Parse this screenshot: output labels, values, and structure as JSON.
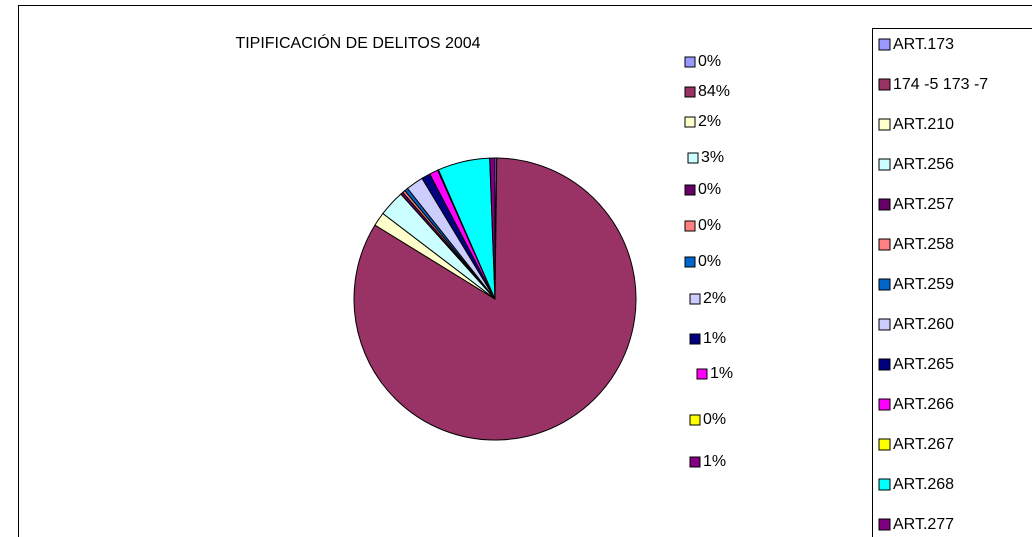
{
  "chart_data": {
    "type": "pie",
    "title": "TIPIFICACIÓN DE DELITOS 2004",
    "categories": [
      "ART.173",
      "174 -5 173 -7",
      "ART.210",
      "ART.256",
      "ART.257",
      "ART.258",
      "ART.259",
      "ART.260",
      "ART.265",
      "ART.266",
      "ART.267",
      "ART.268",
      "ART.277"
    ],
    "values": [
      0.2,
      84,
      1.6,
      3,
      0.3,
      0.3,
      0.4,
      2,
      1,
      1,
      0.1,
      6,
      0.6
    ],
    "value_labels": [
      "0%",
      "84%",
      "2%",
      "3%",
      "0%",
      "0%",
      "0%",
      "2%",
      "1%",
      "1%",
      "0%",
      null,
      "1%"
    ],
    "colors": [
      "#9999FF",
      "#993366",
      "#FFFFCC",
      "#CCFFFF",
      "#660066",
      "#FF8080",
      "#0066CC",
      "#CCCCFF",
      "#000080",
      "#FF00FF",
      "#FFFF00",
      "#00FFFF",
      "#800080"
    ],
    "legend": "right"
  }
}
